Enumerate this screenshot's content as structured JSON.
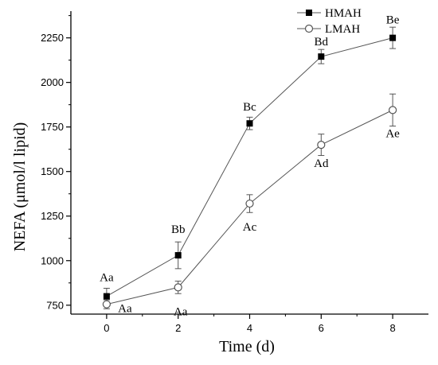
{
  "chart_data": {
    "type": "line",
    "xlabel": "Time (d)",
    "ylabel": "NEFA (μmol/l lipid)",
    "x": [
      0,
      2,
      4,
      6,
      8
    ],
    "xlim": [
      -1,
      9
    ],
    "ylim": [
      700,
      2400
    ],
    "xticks": [
      "0",
      "2",
      "4",
      "6",
      "8"
    ],
    "yticks": [
      "750",
      "1000",
      "1250",
      "1500",
      "1750",
      "2000",
      "2250"
    ],
    "legend_position": "top-right",
    "grid": false,
    "series": [
      {
        "name": "HMAH",
        "marker": "filled-square",
        "values": [
          800,
          1030,
          1770,
          2145,
          2250
        ],
        "error": [
          45,
          75,
          35,
          40,
          60
        ],
        "labels": [
          "Aa",
          "Bb",
          "Bc",
          "Bd",
          "Be"
        ]
      },
      {
        "name": "LMAH",
        "marker": "open-circle",
        "values": [
          755,
          850,
          1320,
          1650,
          1845
        ],
        "error": [
          25,
          35,
          50,
          60,
          90
        ],
        "labels": [
          "Aa",
          "Aa",
          "Ac",
          "Ad",
          "Ae"
        ]
      }
    ],
    "colors": {
      "line": "#555555",
      "axis": "#000000"
    }
  }
}
